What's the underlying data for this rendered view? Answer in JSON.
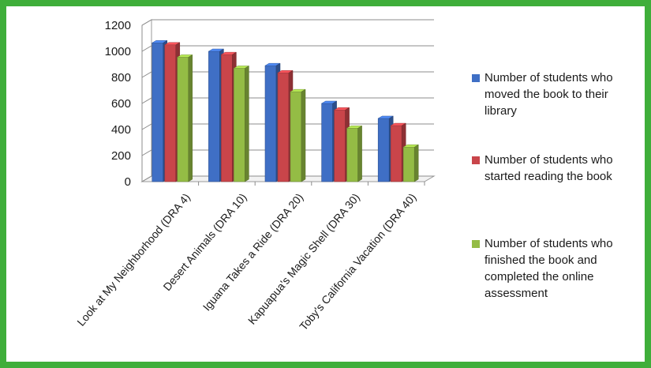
{
  "chart_data": {
    "type": "bar",
    "style": "3d-clustered-column",
    "categories": [
      "Look at My Neighborhood (DRA 4)",
      "Desert Animals (DRA 10)",
      "Iguana Takes a Ride (DRA 20)",
      "Kapuapua's Magic Shell (DRA 30)",
      "Toby's California Vacation (DRA 40)"
    ],
    "series": [
      {
        "name": "Number of students who moved the book to their library",
        "color": "#3f6fc5",
        "values": [
          1065,
          1000,
          890,
          600,
          485
        ]
      },
      {
        "name": "Number of students who started reading the book",
        "color": "#c9454a",
        "values": [
          1050,
          975,
          835,
          550,
          430
        ]
      },
      {
        "name": "Number of students who finished the book and completed the online assessment",
        "color": "#94bc45",
        "values": [
          955,
          870,
          690,
          410,
          265
        ]
      }
    ],
    "yticks": [
      0,
      200,
      400,
      600,
      800,
      1000,
      1200
    ],
    "ylim": [
      0,
      1200
    ],
    "grid": true,
    "legend": "right",
    "title": "",
    "xlabel": "",
    "ylabel": ""
  }
}
